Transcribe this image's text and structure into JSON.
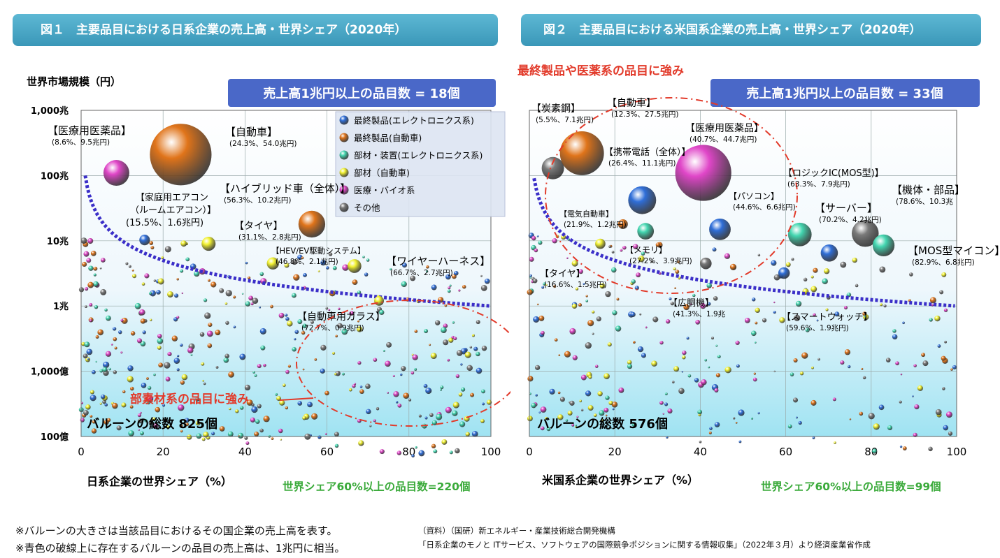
{
  "chart_data": [
    {
      "type": "scatter",
      "title": "図１　主要品目における日系企業の売上高・世界シェア（2020年）",
      "ylabel": "世界市場規模（円）",
      "xlabel": "日系企業の世界シェア（%）",
      "x_ticks": [
        "0",
        "20",
        "40",
        "60",
        "80",
        "100"
      ],
      "y_ticks": [
        "1,000兆",
        "100兆",
        "10兆",
        "1兆",
        "1,000億",
        "100億"
      ],
      "y_scale": "log",
      "xlim": [
        0,
        100
      ],
      "ylim_yen": [
        "100億",
        "1,000兆"
      ],
      "grid": true,
      "top_box": "売上高1兆円以上の品目数 = 18個",
      "bottom_note": "世界シェア60%以上の品目数=220個",
      "balloon_total": "バルーンの総数 825個",
      "callout": "部素材系の品目に強み",
      "legend_position": "top-right",
      "legend": [
        {
          "label": "最終製品(エレクトロニクス系)",
          "color": "#2f6ed8"
        },
        {
          "label": "最終製品(自動車)",
          "color": "#e0741a"
        },
        {
          "label": "部材・装置(エレクトロニクス系)",
          "color": "#43d6b0"
        },
        {
          "label": "部材（自動車)",
          "color": "#f2f230"
        },
        {
          "label": "医療・バイオ系",
          "color": "#e046c8"
        },
        {
          "label": "その他",
          "color": "#7a7a7a"
        }
      ],
      "series": [
        {
          "name": "自動車",
          "x": 24.3,
          "y_trillion": 210,
          "sales_trillion": 54.0,
          "category": "最終製品(自動車)",
          "label": "【自動車】",
          "sub": "(24.3%、54.0兆円)"
        },
        {
          "name": "医療用医薬品",
          "x": 8.6,
          "y_trillion": 110,
          "sales_trillion": 9.5,
          "category": "医療・バイオ系",
          "label": "【医療用医薬品】",
          "sub": "(8.6%、9.5兆円)"
        },
        {
          "name": "ハイブリッド車（全体）",
          "x": 56.3,
          "y_trillion": 18,
          "sales_trillion": 10.2,
          "category": "最終製品(自動車)",
          "label": "【ハイブリッド車（全体）】",
          "sub": "(56.3%、10.2兆円)"
        },
        {
          "name": "家庭用エアコン（ルームエアコン）",
          "x": 15.5,
          "y_trillion": 10.3,
          "sales_trillion": 1.6,
          "category": "最終製品(エレクトロニクス系)",
          "label": "【家庭用エアコン",
          "label2": "（ルームエアコン）】",
          "sub": "(15.5%、1.6兆円)"
        },
        {
          "name": "タイヤ",
          "x": 31.1,
          "y_trillion": 9,
          "sales_trillion": 2.8,
          "category": "部材（自動車)",
          "label": "【タイヤ】",
          "sub": "(31.1%、2.8兆円)"
        },
        {
          "name": "HEV/EV駆動システム",
          "x": 46.8,
          "y_trillion": 4.5,
          "sales_trillion": 2.1,
          "category": "部材（自動車)",
          "label": "【HEV/EV駆動システム】",
          "sub": "(46.8%、2.1兆円)"
        },
        {
          "name": "ワイヤーハーネス",
          "x": 66.7,
          "y_trillion": 4.1,
          "sales_trillion": 2.7,
          "category": "部材（自動車)",
          "label": "【ワイヤーハーネス】",
          "sub": "(66.7%、2.7兆円)"
        },
        {
          "name": "自動車用ガラス",
          "x": 72.7,
          "y_trillion": 1.2,
          "sales_trillion": 0.9,
          "category": "部材（自動車)",
          "label": "【自動車用ガラス】",
          "sub": "(72.7%、0.9兆円)"
        }
      ]
    },
    {
      "type": "scatter",
      "title": "図２　主要品目における米国系企業の売上高・世界シェア（2020年）",
      "xlabel": "米国系企業の世界シェア（%）",
      "x_ticks": [
        "0",
        "20",
        "40",
        "60",
        "80",
        "100"
      ],
      "y_scale": "log",
      "xlim": [
        0,
        100
      ],
      "grid": true,
      "top_box": "売上高1兆円以上の品目数 = 33個",
      "bottom_note": "世界シェア60%以上の品目数=99個",
      "balloon_total": "バルーンの総数 576個",
      "callout": "最終製品や医薬系の品目に強み",
      "series": [
        {
          "name": "炭素鋼",
          "x": 5.5,
          "y_trillion": 130,
          "sales_trillion": 7.1,
          "category": "その他",
          "label": "【炭素鋼】",
          "sub": "(5.5%、7.1兆円)"
        },
        {
          "name": "自動車",
          "x": 12.3,
          "y_trillion": 220,
          "sales_trillion": 27.5,
          "category": "最終製品(自動車)",
          "label": "【自動車】",
          "sub": "(12.3%、27.5兆円)"
        },
        {
          "name": "医療用医薬品",
          "x": 40.7,
          "y_trillion": 110,
          "sales_trillion": 44.7,
          "category": "医療・バイオ系",
          "label": "【医療用医薬品】",
          "sub": "(40.7%、44.7兆円)"
        },
        {
          "name": "携帯電話（全体）",
          "x": 26.4,
          "y_trillion": 42,
          "sales_trillion": 11.1,
          "category": "最終製品(エレクトロニクス系)",
          "label": "【携帯電話（全体）】",
          "sub": "(26.4%、11.1兆円)"
        },
        {
          "name": "パソコン",
          "x": 44.6,
          "y_trillion": 15,
          "sales_trillion": 6.6,
          "category": "最終製品(エレクトロニクス系)",
          "label": "【パソコン】",
          "sub": "(44.6%、6.6兆円)"
        },
        {
          "name": "ロジックIC(MOS型)",
          "x": 63.3,
          "y_trillion": 12.5,
          "sales_trillion": 7.9,
          "category": "部材・装置(エレクトロニクス系)",
          "label": "【ロジックIC(MOS型)】",
          "sub": "(63.3%、7.9兆円)"
        },
        {
          "name": "機体・部品",
          "x": 78.6,
          "y_trillion": 13,
          "sales_trillion": 10.3,
          "category": "その他",
          "label": "【機体・部品】",
          "sub": "(78.6%、10.3兆"
        },
        {
          "name": "サーバー",
          "x": 70.2,
          "y_trillion": 6.5,
          "sales_trillion": 4.2,
          "category": "最終製品(エレクトロニクス系)",
          "label": "【サーバー】",
          "sub": "(70.2%、4.2兆円)"
        },
        {
          "name": "MOS型マイコン",
          "x": 82.9,
          "y_trillion": 8.5,
          "sales_trillion": 6.8,
          "category": "部材・装置(エレクトロニクス系)",
          "label": "【MOS型マイコン】",
          "sub": "(82.9%、6.8兆円)"
        },
        {
          "name": "電気自動車",
          "x": 21.9,
          "y_trillion": 18,
          "sales_trillion": 1.2,
          "category": "最終製品(自動車)",
          "label": "【電気自動車】",
          "sub": "(21.9%、1.2兆円)"
        },
        {
          "name": "メモリ",
          "x": 27.2,
          "y_trillion": 14,
          "sales_trillion": 3.9,
          "category": "部材・装置(エレクトロニクス系)",
          "label": "【メモリ】",
          "sub": "(27.2%、3.9兆円)"
        },
        {
          "name": "タイヤ",
          "x": 16.6,
          "y_trillion": 9,
          "sales_trillion": 1.5,
          "category": "部材（自動車)",
          "label": "【タイヤ】",
          "sub": "(16.6%、1.5兆円)"
        },
        {
          "name": "広胴機",
          "x": 41.3,
          "y_trillion": 4.5,
          "sales_trillion": 1.9,
          "category": "その他",
          "label": "【広胴機】",
          "sub": "(41.3%、1.9兆"
        },
        {
          "name": "スマートウォッチ",
          "x": 59.6,
          "y_trillion": 3.2,
          "sales_trillion": 1.9,
          "category": "最終製品(エレクトロニクス系)",
          "label": "【スマートウォッチ】",
          "sub": "(59.6%、1.9兆円)"
        }
      ]
    }
  ],
  "footer": {
    "note1": "※バルーンの大きさは当該品目におけるその国企業の売上高を表す。",
    "note2": "※青色の破線上に存在するバルーンの品目の売上高は、1兆円に相当。",
    "source1": "（資料）（国研）新エネルギー・産業技術総合開発機構",
    "source2": "「日系企業のモノと ITサービス、ソフトウェアの国際競争ポジションに関する情報収集」（2022年３月）より経済産業省作成"
  }
}
